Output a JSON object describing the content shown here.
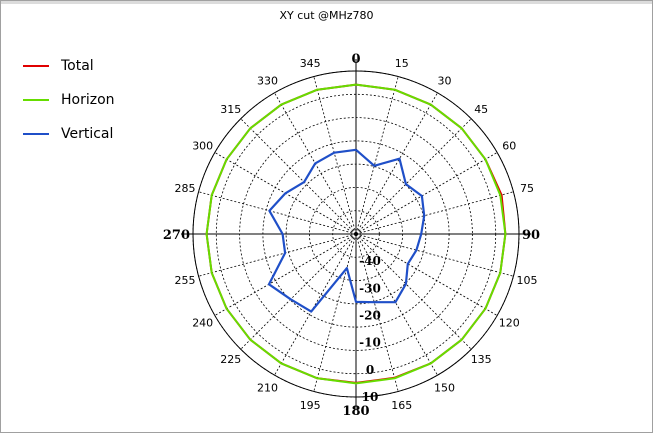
{
  "chart_data": {
    "type": "polar-line",
    "title": "XY cut @MHz780",
    "angle_ticks": [
      "0",
      "15",
      "30",
      "45",
      "60",
      "75",
      "90",
      "105",
      "120",
      "135",
      "150",
      "165",
      "180",
      "195",
      "210",
      "225",
      "240",
      "255",
      "270",
      "285",
      "300",
      "315",
      "330",
      "345"
    ],
    "radial_ticks": [
      "-40",
      "-30",
      "-20",
      "-10",
      "0",
      "10"
    ],
    "radial_range": [
      -50,
      10
    ],
    "legend_position": "top-left",
    "grid": true,
    "series": [
      {
        "name": "Total",
        "color": "#e00000",
        "angles_deg": [
          0,
          15,
          30,
          45,
          60,
          75,
          90,
          105,
          120,
          135,
          150,
          165,
          180,
          195,
          210,
          225,
          240,
          255,
          270,
          285,
          300,
          315,
          330,
          345
        ],
        "values": [
          5.0,
          5.0,
          5.0,
          5.0,
          5.0,
          5.5,
          5.0,
          5.0,
          5.0,
          5.0,
          5.0,
          4.8,
          4.8,
          5.0,
          5.0,
          5.0,
          5.0,
          5.0,
          5.0,
          5.0,
          5.0,
          5.0,
          5.0,
          5.0
        ]
      },
      {
        "name": "Horizon",
        "color": "#66dd00",
        "angles_deg": [
          0,
          15,
          30,
          45,
          60,
          75,
          90,
          105,
          120,
          135,
          150,
          165,
          180,
          195,
          210,
          225,
          240,
          255,
          270,
          285,
          300,
          315,
          330,
          345
        ],
        "values": [
          5.0,
          5.0,
          5.0,
          5.0,
          5.0,
          5.0,
          5.0,
          5.0,
          5.0,
          5.0,
          5.0,
          5.0,
          5.0,
          5.0,
          5.0,
          5.0,
          5.0,
          5.0,
          5.0,
          5.0,
          5.0,
          5.0,
          5.0,
          5.0
        ]
      },
      {
        "name": "Vertical",
        "color": "#1f4fc8",
        "angles_deg": [
          0,
          15,
          30,
          45,
          60,
          75,
          90,
          105,
          120,
          135,
          150,
          165,
          180,
          195,
          210,
          225,
          240,
          255,
          270,
          285,
          300,
          315,
          330,
          345
        ],
        "values": [
          -19,
          -24,
          -18,
          -24,
          -22,
          -24,
          -26,
          -27,
          -28,
          -24,
          -21,
          -24,
          -25,
          -37,
          -17,
          -16,
          -13,
          -23,
          -23,
          -17,
          -20,
          -23,
          -20,
          -19
        ]
      }
    ]
  }
}
